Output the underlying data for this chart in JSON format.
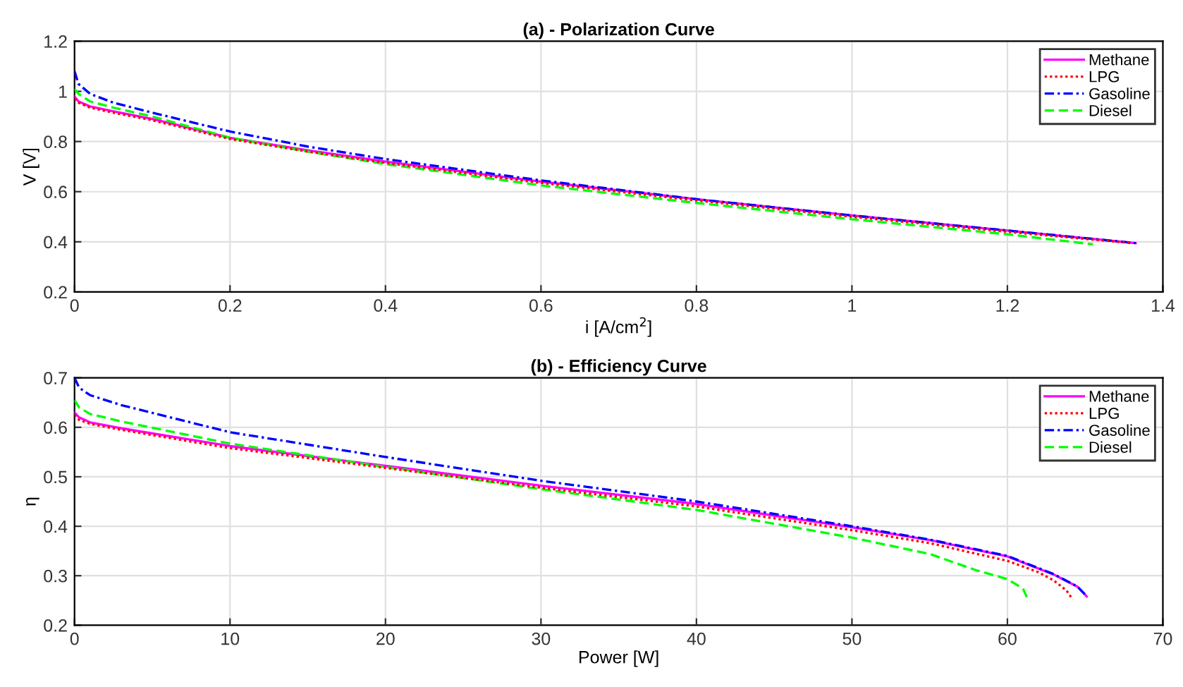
{
  "chart_data": [
    {
      "type": "line",
      "title": "(a) - Polarization Curve",
      "xlabel": "i [A/cm$^{2}$]",
      "ylabel": "V [V]",
      "xlim": [
        0,
        1.4
      ],
      "ylim": [
        0.2,
        1.2
      ],
      "xticks": [
        0,
        0.2,
        0.4,
        0.6,
        0.8,
        1,
        1.2,
        1.4
      ],
      "yticks": [
        0.2,
        0.4,
        0.6,
        0.8,
        1,
        1.2
      ],
      "grid": true,
      "legend": "top right",
      "series": [
        {
          "name": "Methane",
          "color": "#ff00ff",
          "line_style": "solid",
          "x": [
            0,
            0.005,
            0.02,
            0.05,
            0.1,
            0.2,
            0.3,
            0.4,
            0.6,
            0.8,
            1.0,
            1.2,
            1.365
          ],
          "values": [
            0.98,
            0.96,
            0.94,
            0.92,
            0.89,
            0.815,
            0.765,
            0.72,
            0.64,
            0.57,
            0.505,
            0.445,
            0.395
          ]
        },
        {
          "name": "LPG",
          "color": "#ff0000",
          "line_style": "dotted",
          "x": [
            0,
            0.005,
            0.02,
            0.05,
            0.1,
            0.2,
            0.3,
            0.4,
            0.6,
            0.8,
            1.0,
            1.2,
            1.36
          ],
          "values": [
            0.97,
            0.955,
            0.935,
            0.915,
            0.885,
            0.81,
            0.76,
            0.715,
            0.635,
            0.565,
            0.5,
            0.44,
            0.395
          ]
        },
        {
          "name": "Gasoline",
          "color": "#0000ff",
          "line_style": "dashdot",
          "x": [
            0,
            0.005,
            0.02,
            0.05,
            0.1,
            0.2,
            0.3,
            0.4,
            0.6,
            0.8,
            1.0,
            1.2,
            1.365
          ],
          "values": [
            1.08,
            1.03,
            0.99,
            0.955,
            0.915,
            0.84,
            0.78,
            0.73,
            0.645,
            0.57,
            0.505,
            0.445,
            0.395
          ]
        },
        {
          "name": "Diesel",
          "color": "#00ff00",
          "line_style": "dashed",
          "x": [
            0,
            0.005,
            0.02,
            0.05,
            0.1,
            0.2,
            0.3,
            0.4,
            0.6,
            0.8,
            1.0,
            1.2,
            1.31
          ],
          "values": [
            1.01,
            0.99,
            0.96,
            0.935,
            0.9,
            0.815,
            0.76,
            0.71,
            0.625,
            0.555,
            0.49,
            0.43,
            0.39
          ]
        }
      ]
    },
    {
      "type": "line",
      "title": "(b) - Efficiency Curve",
      "xlabel": "Power [W]",
      "ylabel": "η",
      "xlim": [
        0,
        70
      ],
      "ylim": [
        0.2,
        0.7
      ],
      "xticks": [
        0,
        10,
        20,
        30,
        40,
        50,
        60,
        70
      ],
      "yticks": [
        0.2,
        0.3,
        0.4,
        0.5,
        0.6,
        0.7
      ],
      "grid": true,
      "legend": "top right",
      "series": [
        {
          "name": "Methane",
          "color": "#ff00ff",
          "line_style": "solid",
          "x": [
            0,
            0.3,
            1,
            3,
            10,
            20,
            30,
            40,
            50,
            55,
            60,
            63,
            64.5,
            65.1
          ],
          "values": [
            0.63,
            0.62,
            0.61,
            0.598,
            0.562,
            0.522,
            0.482,
            0.445,
            0.398,
            0.372,
            0.339,
            0.302,
            0.278,
            0.258
          ]
        },
        {
          "name": "LPG",
          "color": "#ff0000",
          "line_style": "dotted",
          "x": [
            0,
            0.3,
            1,
            3,
            10,
            20,
            30,
            40,
            50,
            55,
            60,
            62,
            63,
            63.8,
            64.2
          ],
          "values": [
            0.625,
            0.615,
            0.607,
            0.595,
            0.558,
            0.518,
            0.478,
            0.44,
            0.392,
            0.366,
            0.33,
            0.307,
            0.29,
            0.27,
            0.252
          ]
        },
        {
          "name": "Gasoline",
          "color": "#0000ff",
          "line_style": "dashdot",
          "x": [
            0,
            0.3,
            1,
            3,
            10,
            20,
            30,
            40,
            50,
            55,
            60,
            63,
            64.5,
            65
          ],
          "values": [
            0.7,
            0.68,
            0.665,
            0.645,
            0.59,
            0.54,
            0.492,
            0.45,
            0.4,
            0.373,
            0.34,
            0.303,
            0.278,
            0.262
          ]
        },
        {
          "name": "Diesel",
          "color": "#00ff00",
          "line_style": "dashed",
          "x": [
            0,
            0.3,
            1,
            3,
            10,
            20,
            30,
            40,
            50,
            55,
            58,
            60,
            61,
            61.3
          ],
          "values": [
            0.655,
            0.64,
            0.627,
            0.612,
            0.567,
            0.52,
            0.475,
            0.433,
            0.377,
            0.344,
            0.311,
            0.293,
            0.274,
            0.253
          ]
        }
      ]
    }
  ]
}
